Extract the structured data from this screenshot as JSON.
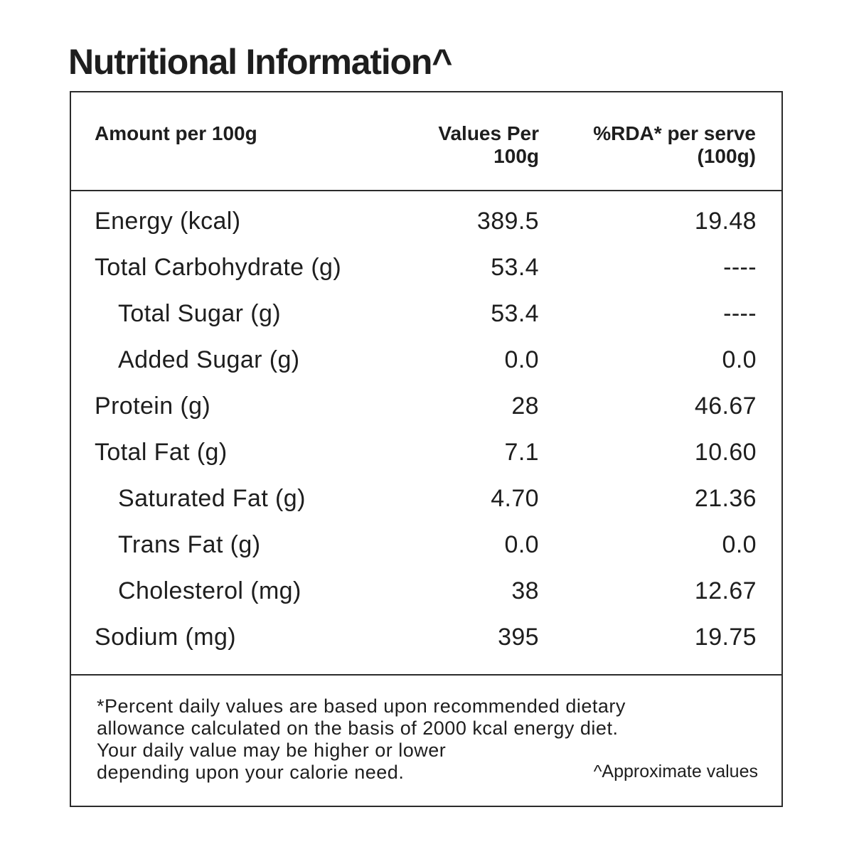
{
  "title": "Nutritional Information^",
  "header": {
    "amount_label": "Amount per 100g",
    "values_line1": "Values Per",
    "values_line2": "100g",
    "rda_line1": "%RDA* per serve",
    "rda_line2": "(100g)"
  },
  "rows": [
    {
      "label": "Energy (kcal)",
      "value": "389.5",
      "rda": "19.48"
    },
    {
      "label": "Total Carbohydrate (g)",
      "value": "53.4",
      "rda": "----"
    },
    {
      "label": "Total Sugar (g)",
      "value": "53.4",
      "rda": "----"
    },
    {
      "label": "Added Sugar (g)",
      "value": "0.0",
      "rda": "0.0"
    },
    {
      "label": "Protein (g)",
      "value": "28",
      "rda": "46.67"
    },
    {
      "label": "Total Fat (g)",
      "value": "7.1",
      "rda": "10.60"
    },
    {
      "label": "Saturated Fat (g)",
      "value": "4.70",
      "rda": "21.36"
    },
    {
      "label": "Trans Fat (g)",
      "value": "0.0",
      "rda": "0.0"
    },
    {
      "label": "Cholesterol (mg)",
      "value": "38",
      "rda": "12.67"
    },
    {
      "label": "Sodium (mg)",
      "value": "395",
      "rda": "19.75"
    }
  ],
  "footer": {
    "note_line1": "*Percent daily values are based upon recommended dietary",
    "note_line2": "allowance calculated on the basis of 2000 kcal energy diet.",
    "note_line3": "Your daily value may be higher or lower",
    "note_line4": "depending upon your calorie need.",
    "approx": "^Approximate values"
  }
}
